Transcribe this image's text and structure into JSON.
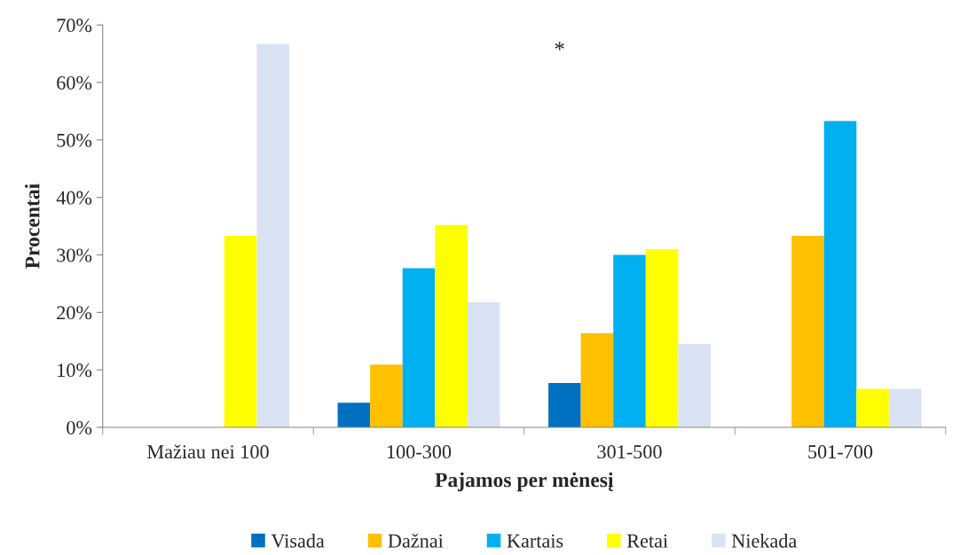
{
  "chart_data": {
    "type": "bar",
    "xlabel": "Pajamos per mėnesį",
    "ylabel": "Procentai",
    "categories": [
      "Mažiau nei 100",
      "100-300",
      "301-500",
      "501-700"
    ],
    "series": [
      {
        "name": "Visada",
        "color": "#0070c0",
        "values": [
          null,
          4.3,
          7.7,
          null
        ]
      },
      {
        "name": "Dažnai",
        "color": "#ffc000",
        "values": [
          null,
          10.9,
          16.4,
          33.3
        ]
      },
      {
        "name": "Kartais",
        "color": "#00b0f0",
        "values": [
          null,
          27.7,
          30.0,
          53.3
        ]
      },
      {
        "name": "Retai",
        "color": "#ffff00",
        "values": [
          33.3,
          35.2,
          31.0,
          6.7
        ]
      },
      {
        "name": "Niekada",
        "color": "#dae3f3",
        "values": [
          66.7,
          21.8,
          14.5,
          6.7
        ]
      }
    ],
    "ylim": [
      0,
      70
    ],
    "yticks": [
      {
        "value": 0,
        "label": "0%"
      },
      {
        "value": 10,
        "label": "10%"
      },
      {
        "value": 20,
        "label": "20%"
      },
      {
        "value": 30,
        "label": "30%"
      },
      {
        "value": 40,
        "label": "40%"
      },
      {
        "value": 50,
        "label": "50%"
      },
      {
        "value": 60,
        "label": "60%"
      },
      {
        "value": 70,
        "label": "70%"
      }
    ],
    "annotations": [
      "*"
    ],
    "grid": false,
    "legend": "bottom"
  }
}
